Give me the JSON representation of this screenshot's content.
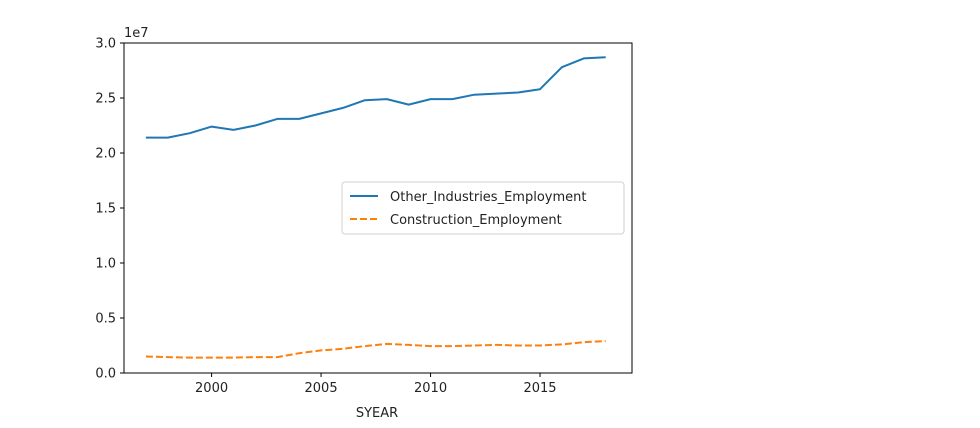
{
  "chart_data": {
    "type": "line",
    "xlabel": "SYEAR",
    "ylabel": "",
    "y_offset_text": "1e7",
    "xlim": [
      1996,
      2019.2
    ],
    "ylim": [
      0,
      3.0
    ],
    "x_ticks": [
      2000,
      2005,
      2010,
      2015
    ],
    "x_tick_labels": [
      "2000",
      "2005",
      "2010",
      "2015"
    ],
    "y_ticks": [
      0,
      0.5,
      1.0,
      1.5,
      2.0,
      2.5,
      3.0
    ],
    "y_tick_labels": [
      "0.0",
      "0.5",
      "1.0",
      "1.5",
      "2.0",
      "2.5",
      "3.0"
    ],
    "grid": false,
    "legend_position": "center-right",
    "x": [
      1997,
      1998,
      1999,
      2000,
      2001,
      2002,
      2003,
      2004,
      2005,
      2006,
      2007,
      2008,
      2009,
      2010,
      2011,
      2012,
      2013,
      2014,
      2015,
      2016,
      2017,
      2018
    ],
    "series": [
      {
        "name": "Other_Industries_Employment",
        "color": "#1f77b4",
        "style": "solid",
        "values": [
          2.14,
          2.14,
          2.18,
          2.24,
          2.21,
          2.25,
          2.31,
          2.31,
          2.36,
          2.41,
          2.48,
          2.49,
          2.44,
          2.49,
          2.49,
          2.53,
          2.54,
          2.55,
          2.58,
          2.78,
          2.86,
          2.87
        ]
      },
      {
        "name": "Construction_Employment",
        "color": "#ff7f0e",
        "style": "dashed",
        "values": [
          0.15,
          0.145,
          0.14,
          0.14,
          0.14,
          0.145,
          0.145,
          0.18,
          0.205,
          0.22,
          0.245,
          0.265,
          0.255,
          0.245,
          0.245,
          0.25,
          0.255,
          0.25,
          0.25,
          0.26,
          0.28,
          0.29
        ]
      }
    ]
  }
}
